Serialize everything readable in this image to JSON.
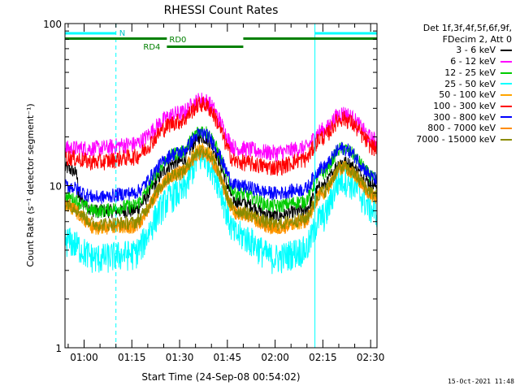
{
  "chart_data": {
    "type": "line",
    "title": "RHESSI Count Rates",
    "xlabel": "Start Time (24-Sep-08 00:54:02)",
    "ylabel": "Count Rate (s⁻¹ detector segment⁻¹)",
    "yscale": "log",
    "ylim": [
      1,
      100
    ],
    "y_ticks": [
      "1",
      "10",
      "100"
    ],
    "xlim_minutes_after_0054": [
      0,
      98
    ],
    "x_ticks": [
      {
        "label": "01:00",
        "min": 6
      },
      {
        "label": "01:15",
        "min": 21
      },
      {
        "label": "01:30",
        "min": 36
      },
      {
        "label": "01:45",
        "min": 51
      },
      {
        "label": "02:00",
        "min": 66
      },
      {
        "label": "02:15",
        "min": 81
      },
      {
        "label": "02:30",
        "min": 96
      }
    ],
    "legend_header": [
      "Det 1f,3f,4f,5f,6f,9f,",
      "FDecim 2, Att 0"
    ],
    "legend_position": "right",
    "grid": false,
    "series": [
      {
        "name": "3 - 6 keV",
        "color": "#000000",
        "x": [
          0,
          10,
          21,
          36,
          43,
          54,
          66,
          75,
          81,
          87,
          98
        ],
        "y": [
          9.5,
          7.0,
          7.0,
          14.0,
          20.0,
          8.0,
          6.5,
          7.0,
          10.0,
          14.0,
          10.0
        ]
      },
      {
        "name": "6 - 12 keV",
        "color": "#ff00ff",
        "x": [
          0,
          10,
          21,
          36,
          43,
          54,
          66,
          75,
          81,
          87,
          98
        ],
        "y": [
          17.0,
          17.0,
          18.0,
          28.0,
          34.0,
          17.0,
          16.0,
          17.0,
          22.0,
          28.0,
          19.0
        ]
      },
      {
        "name": "12 - 25 keV",
        "color": "#00cc00",
        "x": [
          0,
          10,
          21,
          36,
          43,
          54,
          66,
          75,
          81,
          87,
          98
        ],
        "y": [
          8.5,
          7.0,
          7.5,
          16.0,
          22.0,
          9.0,
          7.5,
          8.0,
          12.0,
          17.0,
          11.0
        ]
      },
      {
        "name": "25 - 50 keV",
        "color": "#00ffff",
        "x": [
          0,
          10,
          21,
          36,
          43,
          54,
          66,
          75,
          81,
          87,
          98
        ],
        "y": [
          4.6,
          3.6,
          3.8,
          9.0,
          15.0,
          5.0,
          3.6,
          4.0,
          6.5,
          11.0,
          7.0
        ]
      },
      {
        "name": "50 - 100 keV",
        "color": "#ffa500",
        "x": [
          0,
          10,
          21,
          36,
          43,
          54,
          66,
          75,
          81,
          87,
          98
        ],
        "y": [
          7.5,
          5.5,
          5.6,
          12.0,
          17.0,
          6.8,
          5.5,
          6.0,
          9.0,
          13.0,
          8.5
        ]
      },
      {
        "name": "100 - 300 keV",
        "color": "#ff0000",
        "x": [
          0,
          10,
          21,
          36,
          43,
          54,
          66,
          75,
          81,
          87,
          98
        ],
        "y": [
          15.0,
          14.0,
          15.0,
          25.0,
          32.0,
          14.0,
          13.0,
          14.5,
          20.0,
          26.0,
          17.0
        ]
      },
      {
        "name": "300 - 800 keV",
        "color": "#0000ff",
        "x": [
          0,
          10,
          21,
          36,
          43,
          54,
          66,
          75,
          81,
          87,
          98
        ],
        "y": [
          10.0,
          8.5,
          9.0,
          16.0,
          21.0,
          10.0,
          9.0,
          9.5,
          13.0,
          17.0,
          11.0
        ]
      },
      {
        "name": "800 - 7000 keV",
        "color": "#ff8c00",
        "x": [
          0,
          10,
          21,
          36,
          43,
          54,
          66,
          75,
          81,
          87,
          98
        ],
        "y": [
          7.5,
          5.5,
          5.6,
          12.0,
          16.0,
          6.8,
          5.5,
          6.0,
          9.0,
          13.0,
          8.5
        ]
      },
      {
        "name": "7000 - 15000 keV",
        "color": "#8b8b00",
        "x": [
          0,
          10,
          21,
          36,
          43,
          54,
          66,
          75,
          81,
          87,
          98
        ],
        "y": [
          7.8,
          5.8,
          5.9,
          12.0,
          16.5,
          7.0,
          5.8,
          6.2,
          9.2,
          13.0,
          8.8
        ]
      }
    ],
    "annotations": {
      "N_label": "N",
      "RD0_label": "RD0",
      "RD4_label": "RD4",
      "night_intervals": [
        [
          0,
          16
        ],
        [
          78.5,
          98
        ]
      ],
      "RD0_intervals": [
        [
          0,
          32
        ],
        [
          56,
          98
        ]
      ],
      "RD4_intervals": [
        [
          32,
          56
        ]
      ],
      "cyan_solid_vlines": [
        78.5
      ],
      "cyan_dashed_vlines": [
        16,
        98
      ]
    }
  },
  "timestamp": "15-Oct-2021 11:48"
}
